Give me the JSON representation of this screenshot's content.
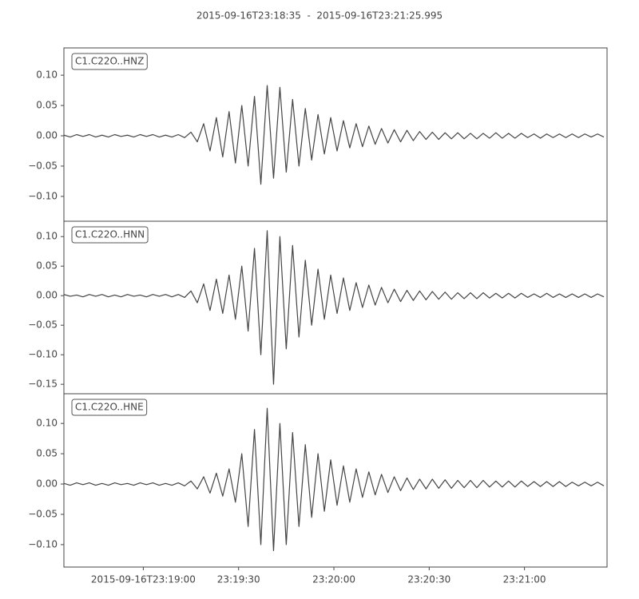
{
  "title": "2015-09-16T23:18:35  -  2015-09-16T23:21:25.995",
  "chart_data": [
    {
      "type": "line",
      "x": [
        0,
        2,
        4,
        6,
        8,
        10,
        12,
        14,
        16,
        18,
        20,
        22,
        24,
        26,
        28,
        30,
        32,
        34,
        36,
        38,
        40,
        42,
        44,
        46,
        48,
        50,
        52,
        54,
        56,
        58,
        60,
        62,
        64,
        66,
        68,
        70,
        72,
        74,
        76,
        78,
        80,
        82,
        84,
        86,
        88,
        90,
        92,
        94,
        96,
        98,
        100,
        102,
        104,
        106,
        108,
        110,
        112,
        114,
        116,
        118,
        120,
        122,
        124,
        126,
        128,
        130,
        132,
        134,
        136,
        138,
        140,
        142,
        144,
        146,
        148,
        150,
        152,
        154,
        156,
        158,
        160,
        162,
        164,
        166,
        168,
        170
      ],
      "series": [
        {
          "name": "C1.C22O..HNZ",
          "color": "#444444",
          "values": [
            0.001,
            -0.002,
            0.002,
            -0.001,
            0.002,
            -0.002,
            0.001,
            -0.002,
            0.002,
            -0.001,
            0.001,
            -0.002,
            0.002,
            -0.001,
            0.002,
            -0.002,
            0.001,
            -0.002,
            0.002,
            -0.003,
            0.006,
            -0.01,
            0.02,
            -0.025,
            0.03,
            -0.035,
            0.04,
            -0.045,
            0.05,
            -0.05,
            0.065,
            -0.08,
            0.083,
            -0.07,
            0.08,
            -0.06,
            0.06,
            -0.05,
            0.045,
            -0.04,
            0.035,
            -0.03,
            0.03,
            -0.025,
            0.025,
            -0.02,
            0.02,
            -0.018,
            0.016,
            -0.014,
            0.012,
            -0.012,
            0.01,
            -0.01,
            0.009,
            -0.008,
            0.007,
            -0.006,
            0.006,
            -0.006,
            0.005,
            -0.005,
            0.005,
            -0.005,
            0.004,
            -0.005,
            0.004,
            -0.004,
            0.005,
            -0.004,
            0.004,
            -0.004,
            0.004,
            -0.003,
            0.003,
            -0.004,
            0.003,
            -0.003,
            0.003,
            -0.003,
            0.003,
            -0.003,
            0.003,
            -0.002,
            0.003,
            -0.002
          ]
        }
      ],
      "xlim": [
        0,
        170.995
      ],
      "ylim": [
        -0.141,
        0.145
      ],
      "yticks": [
        {
          "value": -0.1,
          "label": "−0.10"
        },
        {
          "value": -0.05,
          "label": "−0.05"
        },
        {
          "value": 0,
          "label": "0.00"
        },
        {
          "value": 0.05,
          "label": "0.05"
        },
        {
          "value": 0.1,
          "label": "0.10"
        }
      ],
      "legend": "upper left"
    },
    {
      "type": "line",
      "x": [
        0,
        2,
        4,
        6,
        8,
        10,
        12,
        14,
        16,
        18,
        20,
        22,
        24,
        26,
        28,
        30,
        32,
        34,
        36,
        38,
        40,
        42,
        44,
        46,
        48,
        50,
        52,
        54,
        56,
        58,
        60,
        62,
        64,
        66,
        68,
        70,
        72,
        74,
        76,
        78,
        80,
        82,
        84,
        86,
        88,
        90,
        92,
        94,
        96,
        98,
        100,
        102,
        104,
        106,
        108,
        110,
        112,
        114,
        116,
        118,
        120,
        122,
        124,
        126,
        128,
        130,
        132,
        134,
        136,
        138,
        140,
        142,
        144,
        146,
        148,
        150,
        152,
        154,
        156,
        158,
        160,
        162,
        164,
        166,
        168,
        170
      ],
      "series": [
        {
          "name": "C1.C22O..HNN",
          "color": "#444444",
          "values": [
            0.002,
            -0.001,
            0.001,
            -0.002,
            0.002,
            -0.001,
            0.002,
            -0.002,
            0.001,
            -0.002,
            0.002,
            -0.001,
            0.001,
            -0.002,
            0.002,
            -0.001,
            0.002,
            -0.002,
            0.002,
            -0.003,
            0.008,
            -0.012,
            0.02,
            -0.025,
            0.028,
            -0.03,
            0.035,
            -0.04,
            0.05,
            -0.06,
            0.08,
            -0.1,
            0.11,
            -0.15,
            0.1,
            -0.09,
            0.085,
            -0.07,
            0.06,
            -0.05,
            0.045,
            -0.04,
            0.035,
            -0.03,
            0.03,
            -0.025,
            0.022,
            -0.02,
            0.018,
            -0.016,
            0.014,
            -0.012,
            0.011,
            -0.01,
            0.009,
            -0.008,
            0.008,
            -0.007,
            0.007,
            -0.006,
            0.006,
            -0.006,
            0.005,
            -0.005,
            0.005,
            -0.005,
            0.005,
            -0.004,
            0.004,
            -0.004,
            0.004,
            -0.004,
            0.004,
            -0.003,
            0.003,
            -0.003,
            0.004,
            -0.003,
            0.003,
            -0.003,
            0.003,
            -0.003,
            0.003,
            -0.003,
            0.003,
            -0.002
          ]
        }
      ],
      "xlim": [
        0,
        170.995
      ],
      "ylim": [
        -0.166,
        0.126
      ],
      "yticks": [
        {
          "value": -0.15,
          "label": "−0.15"
        },
        {
          "value": -0.1,
          "label": "−0.10"
        },
        {
          "value": -0.05,
          "label": "−0.05"
        },
        {
          "value": 0,
          "label": "0.00"
        },
        {
          "value": 0.05,
          "label": "0.05"
        },
        {
          "value": 0.1,
          "label": "0.10"
        }
      ],
      "legend": "upper left"
    },
    {
      "type": "line",
      "x": [
        0,
        2,
        4,
        6,
        8,
        10,
        12,
        14,
        16,
        18,
        20,
        22,
        24,
        26,
        28,
        30,
        32,
        34,
        36,
        38,
        40,
        42,
        44,
        46,
        48,
        50,
        52,
        54,
        56,
        58,
        60,
        62,
        64,
        66,
        68,
        70,
        72,
        74,
        76,
        78,
        80,
        82,
        84,
        86,
        88,
        90,
        92,
        94,
        96,
        98,
        100,
        102,
        104,
        106,
        108,
        110,
        112,
        114,
        116,
        118,
        120,
        122,
        124,
        126,
        128,
        130,
        132,
        134,
        136,
        138,
        140,
        142,
        144,
        146,
        148,
        150,
        152,
        154,
        156,
        158,
        160,
        162,
        164,
        166,
        168,
        170
      ],
      "series": [
        {
          "name": "C1.C22O..HNE",
          "color": "#444444",
          "values": [
            0.001,
            -0.002,
            0.002,
            -0.001,
            0.002,
            -0.002,
            0.001,
            -0.002,
            0.002,
            -0.001,
            0.001,
            -0.002,
            0.002,
            -0.001,
            0.002,
            -0.002,
            0.001,
            -0.002,
            0.002,
            -0.003,
            0.005,
            -0.008,
            0.012,
            -0.015,
            0.018,
            -0.02,
            0.025,
            -0.03,
            0.05,
            -0.07,
            0.09,
            -0.1,
            0.125,
            -0.11,
            0.1,
            -0.1,
            0.085,
            -0.07,
            0.065,
            -0.055,
            0.05,
            -0.045,
            0.04,
            -0.035,
            0.03,
            -0.03,
            0.025,
            -0.022,
            0.02,
            -0.018,
            0.016,
            -0.014,
            0.012,
            -0.011,
            0.01,
            -0.009,
            0.008,
            -0.008,
            0.008,
            -0.007,
            0.007,
            -0.007,
            0.006,
            -0.006,
            0.006,
            -0.006,
            0.006,
            -0.005,
            0.005,
            -0.005,
            0.005,
            -0.005,
            0.005,
            -0.004,
            0.004,
            -0.004,
            0.004,
            -0.004,
            0.004,
            -0.004,
            0.003,
            -0.003,
            0.003,
            -0.003,
            0.003,
            -0.003
          ]
        }
      ],
      "xlim": [
        0,
        170.995
      ],
      "ylim": [
        -0.137,
        0.149
      ],
      "yticks": [
        {
          "value": -0.1,
          "label": "−0.10"
        },
        {
          "value": -0.05,
          "label": "−0.05"
        },
        {
          "value": 0,
          "label": "0.00"
        },
        {
          "value": 0.05,
          "label": "0.05"
        },
        {
          "value": 0.1,
          "label": "0.10"
        }
      ],
      "xticks": [
        {
          "value": 25,
          "label": "2015-09-16T23:19:00"
        },
        {
          "value": 55,
          "label": "23:19:30"
        },
        {
          "value": 85,
          "label": "23:20:00"
        },
        {
          "value": 115,
          "label": "23:20:30"
        },
        {
          "value": 145,
          "label": "23:21:00"
        }
      ],
      "legend": "upper left"
    }
  ]
}
